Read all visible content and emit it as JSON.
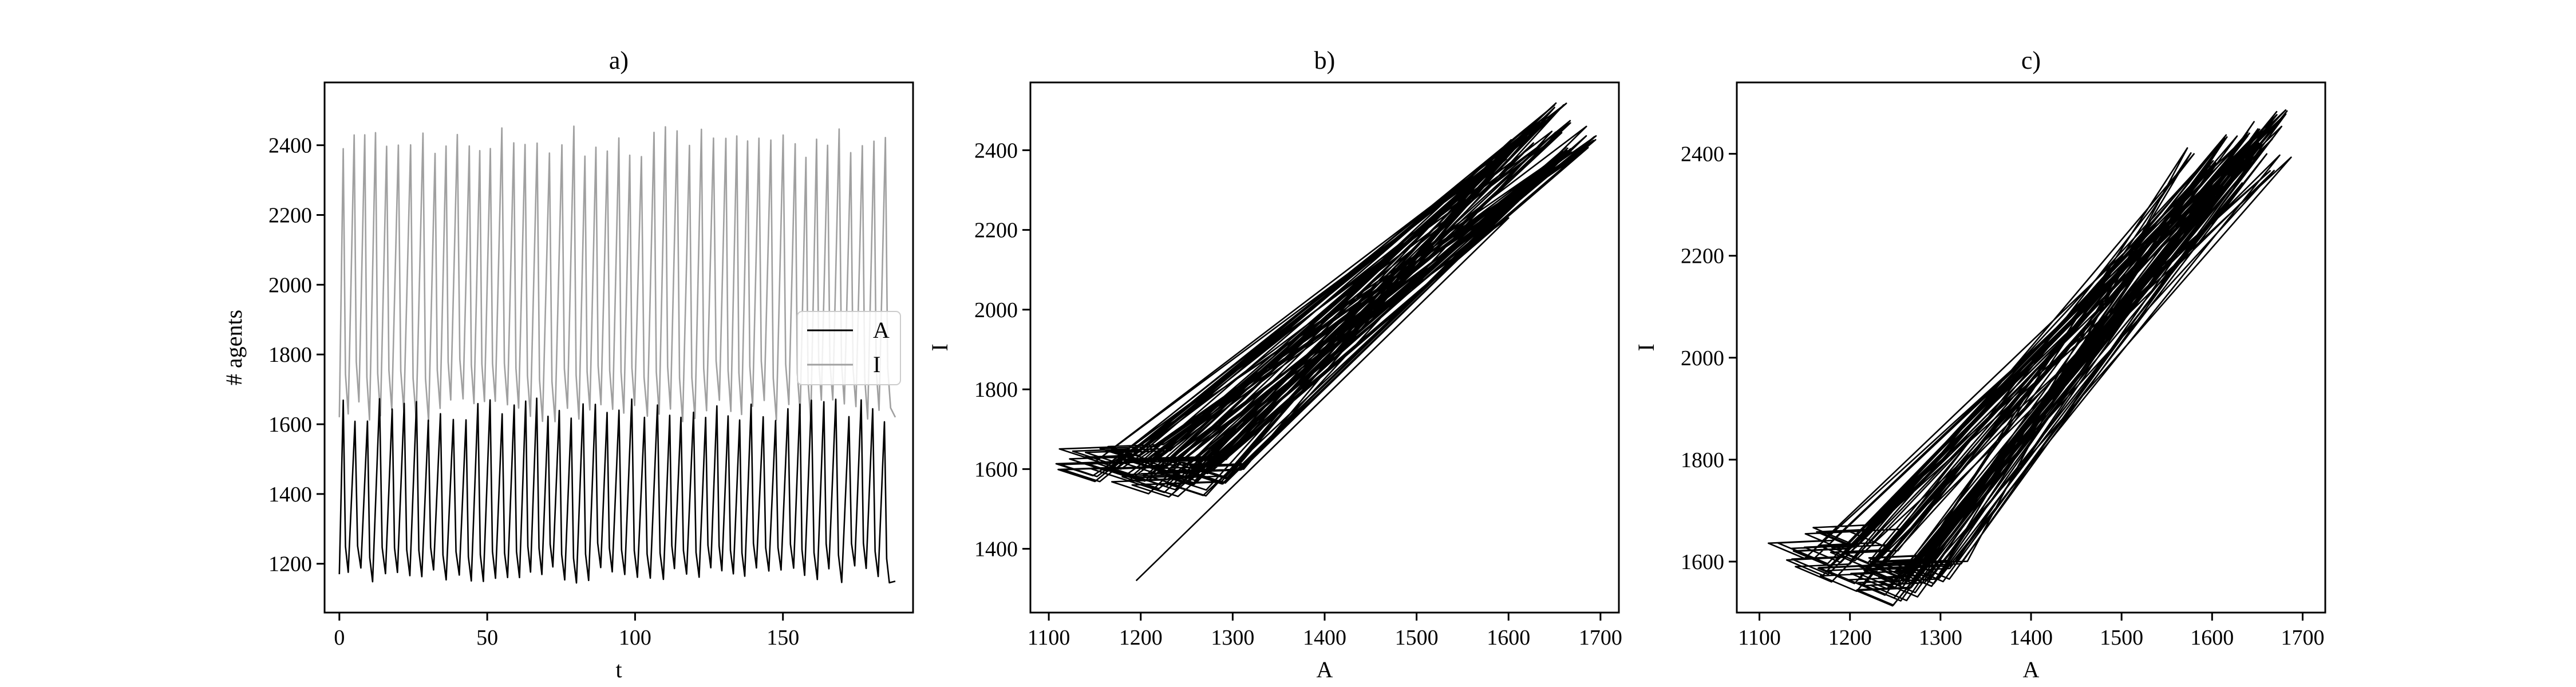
{
  "figure": {
    "panels": [
      "a)",
      "b)",
      "c)"
    ]
  },
  "chart_data": [
    {
      "type": "line",
      "title": "a)",
      "xlabel": "t",
      "ylabel": "# agents",
      "xlim": [
        -5,
        194
      ],
      "ylim": [
        1060,
        2580
      ],
      "xticks": [
        0,
        50,
        100,
        150
      ],
      "yticks": [
        1200,
        1400,
        1600,
        1800,
        2000,
        2200,
        2400
      ],
      "legend": "center-right",
      "grid": false,
      "series": [
        {
          "name": "A",
          "color": "#000000",
          "t0": 0,
          "dt": 0.5,
          "period": 3.9,
          "min_mean": 1170,
          "min_var": 25,
          "max_mean": 1640,
          "max_var": 35,
          "seed": 7,
          "start": 1170,
          "end": 1150
        },
        {
          "name": "I",
          "color": "#a0a0a0",
          "t0": 0,
          "dt": 0.5,
          "period": 3.9,
          "min_mean": 1640,
          "min_var": 35,
          "max_mean": 2410,
          "max_var": 45,
          "seed": 11,
          "start": 1620,
          "end": 1620
        }
      ]
    },
    {
      "type": "line",
      "title": "b)",
      "xlabel": "A",
      "ylabel": "I",
      "xlim": [
        1080,
        1720
      ],
      "ylim": [
        1240,
        2570
      ],
      "xticks": [
        1100,
        1200,
        1300,
        1400,
        1500,
        1600,
        1700
      ],
      "yticks": [
        1400,
        1600,
        1800,
        2000,
        2200,
        2400
      ],
      "grid": false,
      "trajectory": {
        "color": "#000000",
        "start": [
          1195,
          1320
        ],
        "first": [
          1600,
          2230
        ],
        "lo": [
          [
            1110,
            1660
          ],
          [
            1115,
            1605
          ],
          [
            1135,
            1640
          ],
          [
            1160,
            1595
          ],
          [
            1180,
            1630
          ],
          [
            1195,
            1580
          ],
          [
            1215,
            1615
          ],
          [
            1230,
            1570
          ],
          [
            1250,
            1600
          ],
          [
            1120,
            1630
          ],
          [
            1200,
            1555
          ],
          [
            1145,
            1610
          ],
          [
            1175,
            1575
          ],
          [
            1220,
            1595
          ],
          [
            1240,
            1620
          ],
          [
            1165,
            1650
          ]
        ],
        "hi": [
          [
            1600,
            2380
          ],
          [
            1620,
            2410
          ],
          [
            1635,
            2370
          ],
          [
            1650,
            2440
          ],
          [
            1665,
            2400
          ],
          [
            1680,
            2460
          ],
          [
            1690,
            2430
          ],
          [
            1655,
            2515
          ],
          [
            1640,
            2350
          ],
          [
            1610,
            2420
          ],
          [
            1670,
            2390
          ],
          [
            1625,
            2450
          ],
          [
            1595,
            2400
          ],
          [
            1660,
            2470
          ],
          [
            1685,
            2410
          ],
          [
            1645,
            2480
          ]
        ],
        "cycles": 48,
        "seed": 3
      }
    },
    {
      "type": "line",
      "title": "c)",
      "xlabel": "A",
      "ylabel": "I",
      "xlim": [
        1075,
        1725
      ],
      "ylim": [
        1500,
        2540
      ],
      "xticks": [
        1100,
        1200,
        1300,
        1400,
        1500,
        1600,
        1700
      ],
      "yticks": [
        1600,
        1800,
        2000,
        2200,
        2400
      ],
      "grid": false,
      "trajectory": {
        "color": "#000000",
        "start": [
          1200,
          1600
        ],
        "first": [
          1580,
          2400
        ],
        "lo": [
          [
            1115,
            1640
          ],
          [
            1130,
            1600
          ],
          [
            1160,
            1660
          ],
          [
            1170,
            1580
          ],
          [
            1185,
            1620
          ],
          [
            1200,
            1570
          ],
          [
            1215,
            1550
          ],
          [
            1230,
            1600
          ],
          [
            1255,
            1590
          ],
          [
            1190,
            1660
          ],
          [
            1145,
            1620
          ],
          [
            1205,
            1560
          ],
          [
            1240,
            1570
          ],
          [
            1175,
            1640
          ],
          [
            1220,
            1590
          ],
          [
            1260,
            1600
          ]
        ],
        "hi": [
          [
            1580,
            2410
          ],
          [
            1600,
            2380
          ],
          [
            1615,
            2430
          ],
          [
            1630,
            2390
          ],
          [
            1645,
            2440
          ],
          [
            1660,
            2400
          ],
          [
            1670,
            2460
          ],
          [
            1675,
            2480
          ],
          [
            1680,
            2390
          ],
          [
            1640,
            2350
          ],
          [
            1655,
            2420
          ],
          [
            1665,
            2370
          ],
          [
            1620,
            2440
          ],
          [
            1595,
            2400
          ],
          [
            1650,
            2460
          ],
          [
            1672,
            2430
          ]
        ],
        "cycles": 48,
        "seed": 5
      }
    }
  ]
}
